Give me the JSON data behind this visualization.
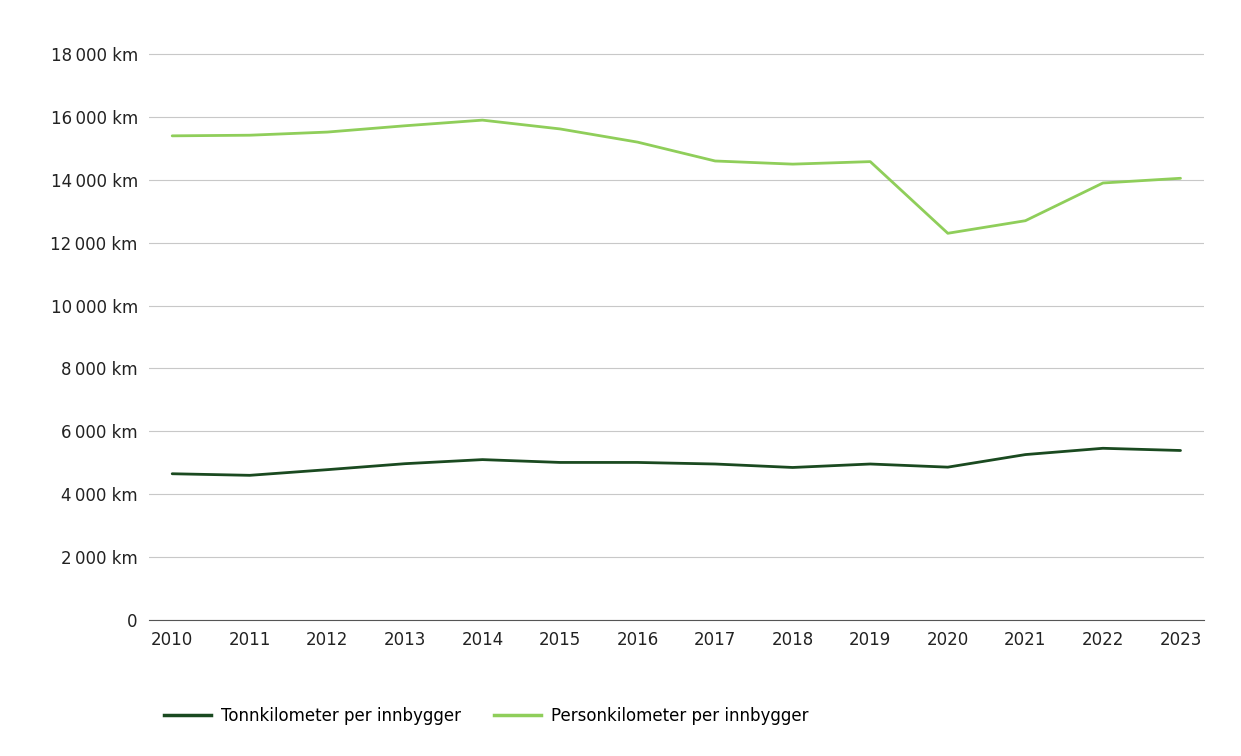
{
  "years": [
    2010,
    2011,
    2012,
    2013,
    2014,
    2015,
    2016,
    2017,
    2018,
    2019,
    2020,
    2021,
    2022,
    2023
  ],
  "personkm": [
    15400,
    15420,
    15520,
    15720,
    15900,
    15620,
    15200,
    14600,
    14500,
    14580,
    12300,
    12700,
    13900,
    14050
  ],
  "tonnkm": [
    4650,
    4600,
    4780,
    4970,
    5100,
    5010,
    5010,
    4960,
    4850,
    4960,
    4860,
    5260,
    5460,
    5390
  ],
  "personkm_color": "#8fce5a",
  "tonnkm_color": "#1a4a20",
  "background_color": "#ffffff",
  "grid_color": "#c8c8c8",
  "ylim": [
    0,
    19000
  ],
  "yticks": [
    0,
    2000,
    4000,
    6000,
    8000,
    10000,
    12000,
    14000,
    16000,
    18000
  ],
  "legend_tonnkm": "Tonnkilometer per innbygger",
  "legend_personkm": "Personkilometer per innbygger",
  "line_width": 2.0,
  "tick_fontsize": 12,
  "legend_fontsize": 12
}
